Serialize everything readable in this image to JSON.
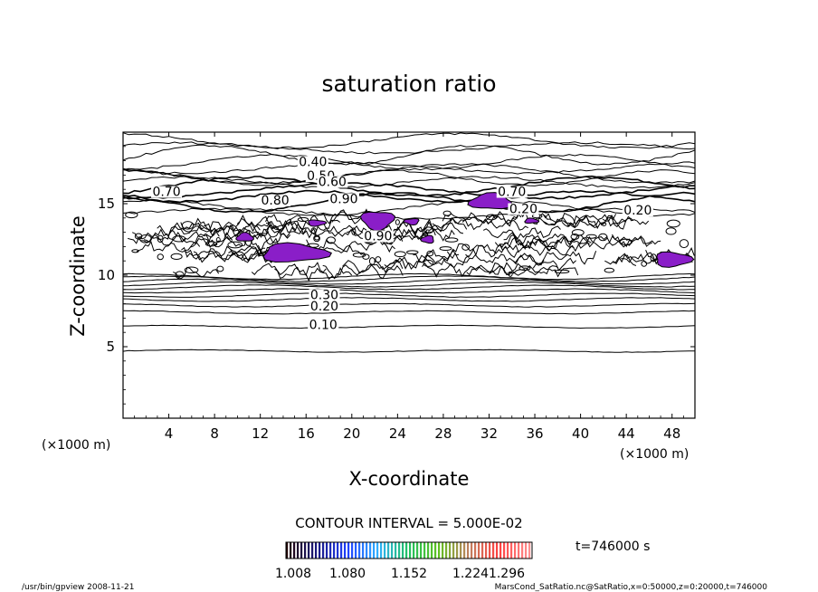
{
  "chart_data": {
    "type": "contour",
    "title": "saturation ratio",
    "xlabel": "X-coordinate",
    "ylabel": "Z-coordinate",
    "x_unit_left": "(×1000 m)",
    "x_unit_right": "(×1000 m)",
    "xlim": [
      0,
      50
    ],
    "ylim": [
      0,
      20
    ],
    "x_ticks": [
      4,
      8,
      12,
      16,
      20,
      24,
      28,
      32,
      36,
      40,
      44,
      48
    ],
    "y_ticks": [
      5,
      10,
      15
    ],
    "contour_interval_label": "CONTOUR INTERVAL = 5.000E-02",
    "contour_interval": 0.05,
    "shaded_threshold": 1.0,
    "shade_color": "#8a1ec8",
    "contour_labels": [
      {
        "text": "0.10",
        "x": 17.5,
        "y": 6.3
      },
      {
        "text": "0.20",
        "x": 17.6,
        "y": 7.6
      },
      {
        "text": "0.30",
        "x": 17.6,
        "y": 8.4
      },
      {
        "text": "0.40",
        "x": 16.6,
        "y": 17.7
      },
      {
        "text": "0.50",
        "x": 17.3,
        "y": 16.7
      },
      {
        "text": "0.60",
        "x": 18.3,
        "y": 16.3
      },
      {
        "text": "0.70",
        "x": 3.8,
        "y": 15.6
      },
      {
        "text": "0.80",
        "x": 13.3,
        "y": 15.0
      },
      {
        "text": "0.90",
        "x": 19.3,
        "y": 15.1
      },
      {
        "text": "0.90",
        "x": 22.3,
        "y": 12.5
      },
      {
        "text": "0.70",
        "x": 34.0,
        "y": 15.6
      },
      {
        "text": "0.20",
        "x": 35.0,
        "y": 14.4
      },
      {
        "text": "0.20",
        "x": 45.0,
        "y": 14.3
      }
    ],
    "supersaturated_regions": [
      {
        "x0": 9.8,
        "x1": 11.5,
        "z0": 12.3,
        "z1": 13.0
      },
      {
        "x0": 11.6,
        "x1": 18.3,
        "z0": 10.8,
        "z1": 12.3
      },
      {
        "x0": 16.0,
        "x1": 17.8,
        "z0": 13.4,
        "z1": 13.9
      },
      {
        "x0": 20.6,
        "x1": 23.9,
        "z0": 13.1,
        "z1": 14.6
      },
      {
        "x0": 24.5,
        "x1": 26.0,
        "z0": 13.5,
        "z1": 14.0
      },
      {
        "x0": 26.0,
        "x1": 27.3,
        "z0": 12.2,
        "z1": 12.8
      },
      {
        "x0": 30.0,
        "x1": 34.3,
        "z0": 14.5,
        "z1": 15.8
      },
      {
        "x0": 35.0,
        "x1": 36.4,
        "z0": 13.6,
        "z1": 14.0
      },
      {
        "x0": 46.2,
        "x1": 49.9,
        "z0": 10.5,
        "z1": 11.7
      }
    ],
    "colorbar": {
      "ticks": [
        "1.008",
        "1.080",
        "1.152",
        "1.224",
        "1.296"
      ],
      "min": 1.008,
      "max": 1.296,
      "colors": [
        "#200000",
        "#1a1a80",
        "#2040ff",
        "#30b0ff",
        "#20c060",
        "#60c020",
        "#c08060",
        "#ff4040",
        "#ff9090"
      ]
    },
    "time_label": "t=746000 s"
  },
  "footer": {
    "left": "/usr/bin/gpview   2008-11-21",
    "right": "MarsCond_SatRatio.nc@SatRatio,x=0:50000,z=0:20000,t=746000"
  }
}
